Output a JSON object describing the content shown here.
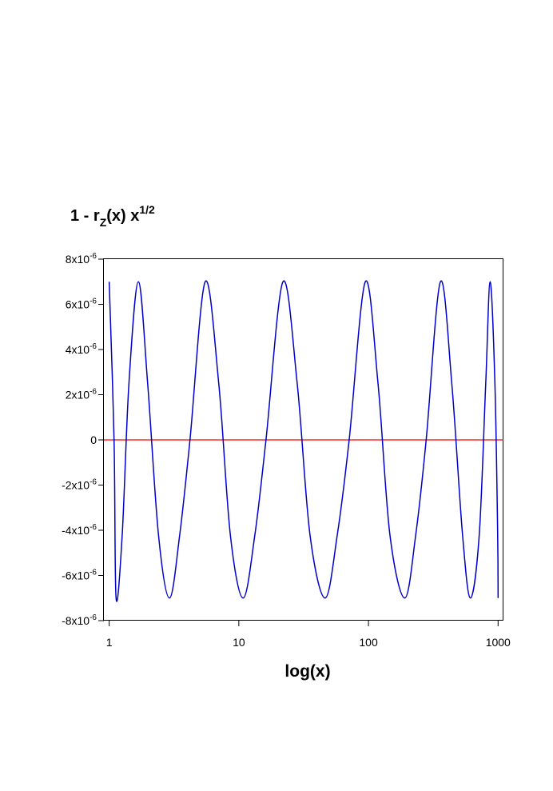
{
  "chart_data": {
    "type": "line",
    "title": {
      "prefix": "1 - r",
      "subscript": "Z",
      "middle": "(x) x",
      "superscript": "1/2"
    },
    "xlabel": "log(x)",
    "ylabel": "",
    "x_scale": "log10",
    "xlim": [
      0.91,
      1100
    ],
    "ylim": [
      -8e-06,
      8e-06
    ],
    "x_ticks": [
      {
        "value": 1,
        "label": "1"
      },
      {
        "value": 10,
        "label": "10"
      },
      {
        "value": 100,
        "label": "100"
      },
      {
        "value": 1000,
        "label": "1000"
      }
    ],
    "y_ticks": [
      {
        "value": 8e-06,
        "mantissa": "8x10",
        "exponent": "-6"
      },
      {
        "value": 6e-06,
        "mantissa": "6x10",
        "exponent": "-6"
      },
      {
        "value": 4e-06,
        "mantissa": "4x10",
        "exponent": "-6"
      },
      {
        "value": 2e-06,
        "mantissa": "2x10",
        "exponent": "-6"
      },
      {
        "value": 0,
        "mantissa": "0",
        "exponent": ""
      },
      {
        "value": -2e-06,
        "mantissa": "-2x10",
        "exponent": "-6"
      },
      {
        "value": -4e-06,
        "mantissa": "-4x10",
        "exponent": "-6"
      },
      {
        "value": -6e-06,
        "mantissa": "-6x10",
        "exponent": "-6"
      },
      {
        "value": -8e-06,
        "mantissa": "-8x10",
        "exponent": "-6"
      }
    ],
    "grid": false,
    "legend": "none",
    "series": [
      {
        "color": "#0000cc",
        "shape": "cosine in log10(x), amplitude 7e-6, about 5.6 periods across x = 1 to 1000",
        "x": [
          1,
          1.09,
          1.13,
          1.26,
          1.42,
          1.68,
          1.98,
          2.4,
          2.92,
          3.5,
          4.2,
          5.5,
          7.0,
          8.6,
          10.8,
          13.3,
          16.2,
          21.9,
          28.2,
          35.4,
          46.3,
          57.5,
          71.0,
          94.6,
          118.5,
          146.4,
          190.5,
          231.6,
          278.8,
          359.0,
          439.3,
          531.8,
          612.3,
          715.5,
          802.9,
          868.6,
          945.0,
          992.7,
          1000
        ],
        "y": [
          7e-06,
          0,
          -7e-06,
          -4.2e-06,
          2.5e-06,
          7e-06,
          2.5e-06,
          -4.2e-06,
          -7e-06,
          -4.2e-06,
          0,
          7e-06,
          2.5e-06,
          -4.2e-06,
          -7e-06,
          -4.2e-06,
          0,
          7e-06,
          2.5e-06,
          -4.2e-06,
          -7e-06,
          -4.2e-06,
          0,
          7e-06,
          2.5e-06,
          -4.2e-06,
          -7e-06,
          -4.2e-06,
          0,
          7e-06,
          2.5e-06,
          -4.2e-06,
          -7e-06,
          -4.2e-06,
          2.5e-06,
          7e-06,
          2.5e-06,
          -4.2e-06,
          -7e-06
        ]
      }
    ],
    "reference_line": {
      "y": 0,
      "color": "#ff0000"
    }
  }
}
